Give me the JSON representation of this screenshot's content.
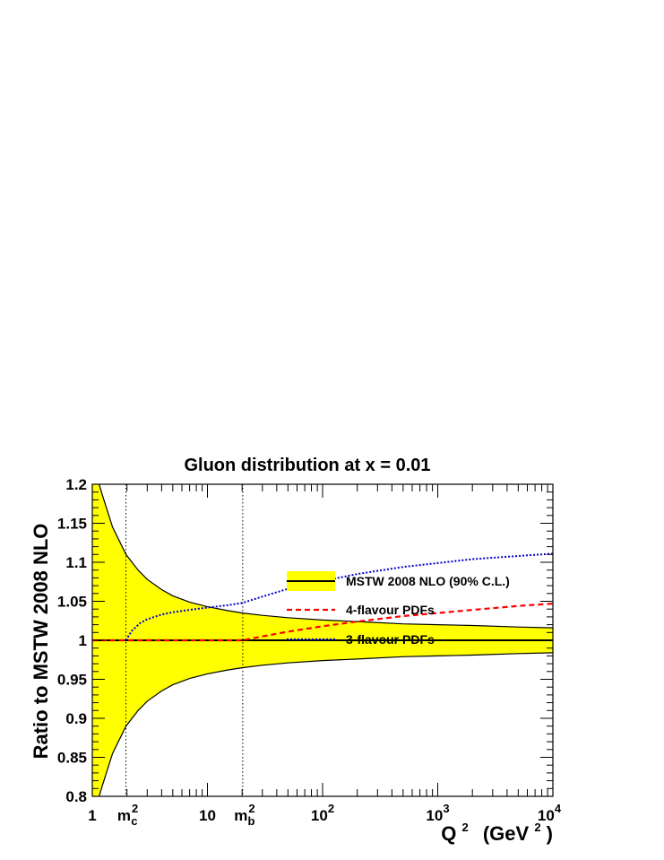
{
  "chart_data": {
    "type": "line",
    "title": "Gluon distribution at x = 0.01",
    "xlabel": {
      "main": "Q",
      "sup": "2",
      "unit_open": "(GeV",
      "unit_sup": "2",
      "unit_close": ")"
    },
    "ylabel": "Ratio to MSTW 2008 NLO",
    "x_scale": "log",
    "xlim": [
      1,
      10000
    ],
    "ylim": [
      0.8,
      1.2
    ],
    "x_ticks": [
      {
        "value": 1,
        "base": "1"
      },
      {
        "value": 10,
        "base": "10"
      },
      {
        "value": 100,
        "base": "10",
        "exp": "2"
      },
      {
        "value": 1000,
        "base": "10",
        "exp": "3"
      },
      {
        "value": 10000,
        "base": "10",
        "exp": "4"
      }
    ],
    "extra_x_labels": [
      {
        "value": 1.96,
        "base": "m",
        "sub": "c",
        "sup": "2"
      },
      {
        "value": 20.25,
        "base": "m",
        "sub": "b",
        "sup": "2"
      }
    ],
    "y_ticks": [
      "0.8",
      "0.85",
      "0.9",
      "0.95",
      "1",
      "1.05",
      "1.1",
      "1.15",
      "1.2"
    ],
    "y_tick_values": [
      0.8,
      0.85,
      0.9,
      0.95,
      1.0,
      1.05,
      1.1,
      1.15,
      1.2
    ],
    "reference_lines": [
      1.96,
      20.25
    ],
    "band": {
      "name": "MSTW 2008 NLO (90% C.L.)",
      "color": "#ffff00",
      "x": [
        1,
        1.2,
        1.5,
        1.96,
        2.5,
        3,
        4,
        5,
        7,
        10,
        15,
        20.25,
        30,
        50,
        100,
        200,
        500,
        1000,
        2000,
        5000,
        10000
      ],
      "upper": [
        1.23,
        1.19,
        1.145,
        1.11,
        1.09,
        1.078,
        1.065,
        1.057,
        1.049,
        1.043,
        1.038,
        1.035,
        1.032,
        1.029,
        1.026,
        1.024,
        1.021,
        1.02,
        1.019,
        1.017,
        1.016
      ],
      "lower": [
        0.77,
        0.81,
        0.855,
        0.89,
        0.91,
        0.922,
        0.935,
        0.943,
        0.951,
        0.957,
        0.962,
        0.965,
        0.968,
        0.971,
        0.974,
        0.976,
        0.979,
        0.98,
        0.981,
        0.983,
        0.984
      ]
    },
    "series": [
      {
        "name": "MSTW 2008 NLO (90% C.L.)",
        "color": "#000000",
        "style": "solid",
        "x": [
          1,
          10000
        ],
        "y": [
          1.0,
          1.0
        ]
      },
      {
        "name": "4-flavour PDFs",
        "color": "#ff0000",
        "style": "dashed",
        "x": [
          1,
          20.25,
          30,
          50,
          100,
          200,
          500,
          1000,
          2000,
          5000,
          10000
        ],
        "y": [
          1.0,
          1.0,
          1.005,
          1.011,
          1.018,
          1.024,
          1.031,
          1.035,
          1.039,
          1.044,
          1.047
        ]
      },
      {
        "name": "3-flavour PDFs",
        "color": "#0000cc",
        "style": "dotted",
        "x": [
          1.96,
          2.2,
          2.6,
          3,
          4,
          5,
          7,
          10,
          15,
          20.25,
          30,
          50,
          100,
          200,
          500,
          1000,
          2000,
          5000,
          10000
        ],
        "y": [
          1.0,
          1.012,
          1.022,
          1.027,
          1.033,
          1.036,
          1.039,
          1.042,
          1.045,
          1.048,
          1.056,
          1.066,
          1.076,
          1.085,
          1.094,
          1.099,
          1.104,
          1.108,
          1.111
        ]
      }
    ],
    "legend": {
      "placement": "bottom-right",
      "entries": [
        {
          "label": "MSTW 2008 NLO (90% C.L.)",
          "kind": "band-line"
        },
        {
          "label": "4-flavour PDFs",
          "kind": "dashed",
          "color": "#ff0000"
        },
        {
          "label": "3-flavour PDFs",
          "kind": "dotted",
          "color": "#0000cc"
        }
      ]
    },
    "grid": false
  }
}
